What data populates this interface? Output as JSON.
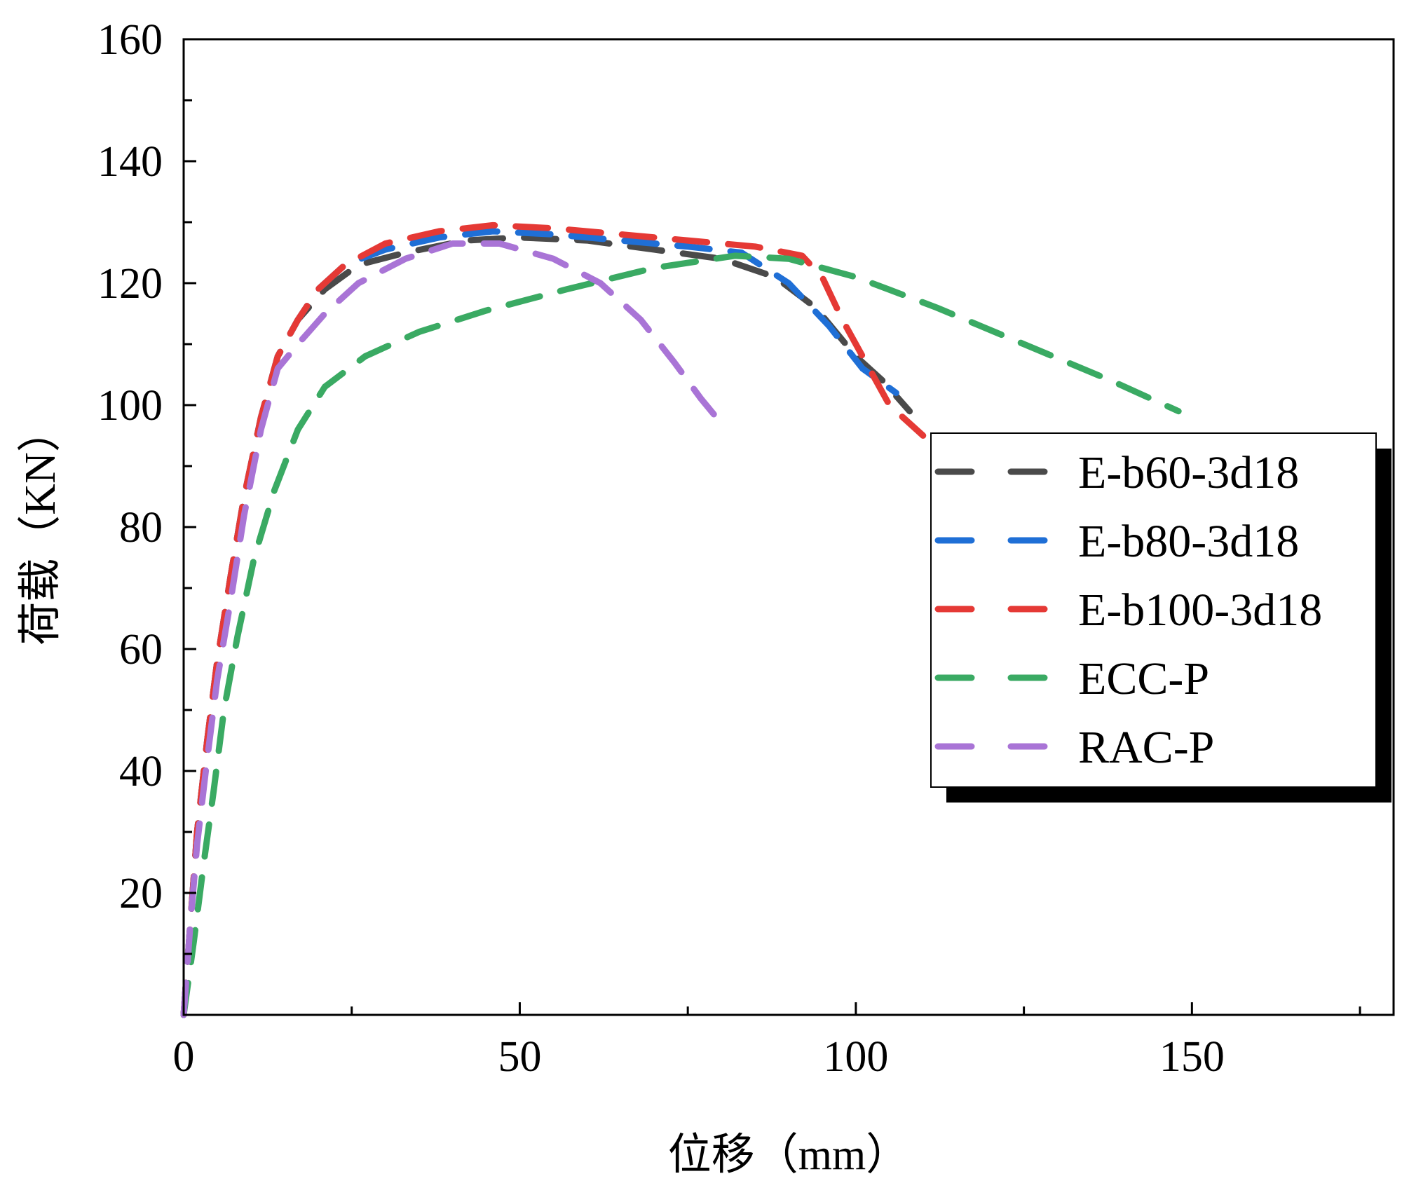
{
  "chart_data": {
    "type": "line",
    "title": "",
    "xlabel": "位移（mm）",
    "ylabel": "荷载（KN）",
    "xlim": [
      0,
      180
    ],
    "ylim": [
      0,
      160
    ],
    "x_ticks": [
      0,
      50,
      100,
      150
    ],
    "x_tick_labels": [
      "0",
      "50",
      "100",
      "150"
    ],
    "y_ticks": [
      20,
      40,
      60,
      80,
      100,
      120,
      140,
      160
    ],
    "y_tick_labels": [
      "20",
      "40",
      "60",
      "80",
      "100",
      "120",
      "140",
      "160"
    ],
    "grid": false,
    "line_style": "dashed",
    "legend_position": "right",
    "series": [
      {
        "name": "E-b60-3d18",
        "color": "#4a4a4a",
        "x": [
          0,
          1,
          2,
          3.5,
          5,
          7,
          9,
          11.5,
          14,
          17,
          21,
          26,
          33,
          42,
          50,
          60,
          70,
          80,
          88,
          94,
          100,
          104,
          108
        ],
        "y": [
          0,
          15,
          30,
          45,
          58,
          72,
          85,
          98,
          108,
          114,
          119,
          123,
          125,
          127,
          127.5,
          127,
          125.5,
          124,
          121,
          116,
          108,
          104,
          99
        ]
      },
      {
        "name": "E-b80-3d18",
        "color": "#1f6fd6",
        "x": [
          0,
          1,
          2,
          3.5,
          5,
          7,
          9,
          11.5,
          14,
          17,
          20,
          24,
          30,
          38,
          46,
          55,
          65,
          75,
          83,
          90,
          96,
          101,
          106
        ],
        "y": [
          0,
          15,
          30,
          45,
          58,
          72,
          85,
          98,
          108,
          114,
          119,
          123,
          125.5,
          127.5,
          128.5,
          128,
          127,
          126,
          125,
          120,
          113,
          106,
          102
        ]
      },
      {
        "name": "E-b100-3d18",
        "color": "#e53935",
        "x": [
          0,
          1,
          2,
          3.5,
          5,
          7,
          9,
          11.5,
          14,
          17,
          20,
          24,
          30,
          38,
          46,
          55,
          65,
          75,
          85,
          92,
          95,
          98,
          101,
          105,
          110
        ],
        "y": [
          0,
          15,
          30,
          45,
          58,
          72,
          85,
          98,
          108,
          114,
          119,
          123,
          126.5,
          128.5,
          129.5,
          129,
          128,
          127,
          126,
          124.5,
          121,
          114,
          108,
          100,
          95
        ]
      },
      {
        "name": "ECC-P",
        "color": "#3aaa63",
        "x": [
          0,
          1.5,
          3,
          4.5,
          6,
          8,
          10.5,
          13.5,
          17,
          21,
          27,
          35,
          45,
          57,
          70,
          82,
          90,
          100,
          112,
          125,
          138,
          148
        ],
        "y": [
          0,
          12,
          25,
          37,
          50,
          62,
          75,
          86,
          96,
          103,
          108,
          112,
          115.5,
          119,
          122.5,
          124.5,
          124,
          121,
          116,
          110,
          104,
          99
        ]
      },
      {
        "name": "RAC-P",
        "color": "#a974d6",
        "x": [
          0,
          1,
          2,
          3.5,
          5,
          7,
          9,
          11.5,
          14,
          17,
          21,
          26,
          33,
          40,
          47,
          55,
          62,
          68,
          73,
          77,
          80
        ],
        "y": [
          0,
          15,
          28,
          42,
          55,
          68,
          82,
          96,
          106,
          110,
          115,
          120,
          124,
          126.5,
          126.5,
          124,
          120,
          114,
          107,
          101,
          97
        ]
      }
    ]
  }
}
